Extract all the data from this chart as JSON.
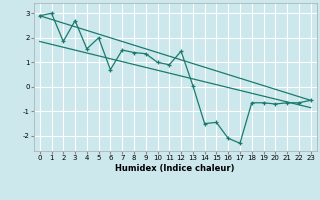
{
  "xlabel": "Humidex (Indice chaleur)",
  "bg_color": "#cce8ec",
  "grid_color": "#ffffff",
  "line_color": "#1a7a6e",
  "scatter_x": [
    0,
    1,
    2,
    3,
    4,
    5,
    6,
    7,
    8,
    9,
    10,
    11,
    12,
    13,
    14,
    15,
    16,
    17,
    18,
    19,
    20,
    21,
    22,
    23
  ],
  "scatter_y": [
    2.9,
    3.0,
    1.85,
    2.7,
    1.55,
    2.0,
    0.7,
    1.5,
    1.4,
    1.35,
    1.0,
    0.9,
    1.45,
    0.05,
    -1.5,
    -1.45,
    -2.1,
    -2.3,
    -0.65,
    -0.65,
    -0.7,
    -0.65,
    -0.65,
    -0.55
  ],
  "line1_y_start": 2.9,
  "line1_y_end": -0.55,
  "line2_y_start": 1.85,
  "line2_y_end": -0.85,
  "xlim": [
    -0.5,
    23.5
  ],
  "ylim": [
    -2.6,
    3.4
  ],
  "yticks": [
    -2,
    -1,
    0,
    1,
    2,
    3
  ],
  "xticks": [
    0,
    1,
    2,
    3,
    4,
    5,
    6,
    7,
    8,
    9,
    10,
    11,
    12,
    13,
    14,
    15,
    16,
    17,
    18,
    19,
    20,
    21,
    22,
    23
  ],
  "xlabel_fontsize": 6.0,
  "tick_fontsize": 5.0
}
